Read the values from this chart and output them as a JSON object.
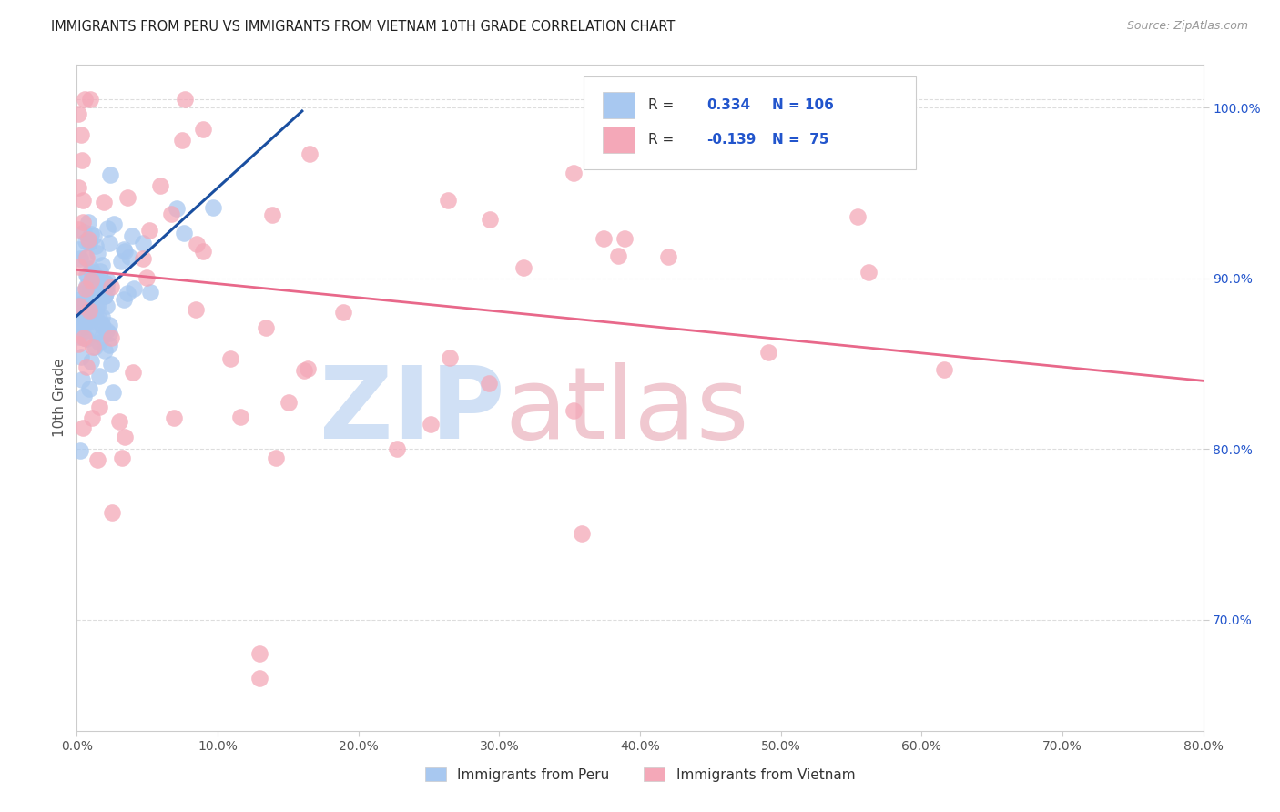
{
  "title": "IMMIGRANTS FROM PERU VS IMMIGRANTS FROM VIETNAM 10TH GRADE CORRELATION CHART",
  "source": "Source: ZipAtlas.com",
  "ylabel": "10th Grade",
  "legend_label1": "Immigrants from Peru",
  "legend_label2": "Immigrants from Vietnam",
  "R1": 0.334,
  "N1": 106,
  "R2": -0.139,
  "N2": 75,
  "color1": "#a8c8f0",
  "color2": "#f4a8b8",
  "line_color1": "#1a4fa0",
  "line_color2": "#e8688a",
  "watermark_zip_color": "#d0e0f5",
  "watermark_atlas_color": "#f0c8d0",
  "xlim": [
    0.0,
    0.8
  ],
  "ylim": [
    0.635,
    1.025
  ],
  "xticks": [
    0.0,
    0.1,
    0.2,
    0.3,
    0.4,
    0.5,
    0.6,
    0.7,
    0.8
  ],
  "yticks_right": [
    0.7,
    0.8,
    0.9,
    1.0
  ],
  "grid_color": "#dddddd",
  "background_color": "#ffffff",
  "blue_trend_x": [
    0.0,
    0.16
  ],
  "blue_trend_y": [
    0.878,
    0.998
  ],
  "pink_trend_x": [
    0.0,
    0.8
  ],
  "pink_trend_y": [
    0.905,
    0.84
  ]
}
